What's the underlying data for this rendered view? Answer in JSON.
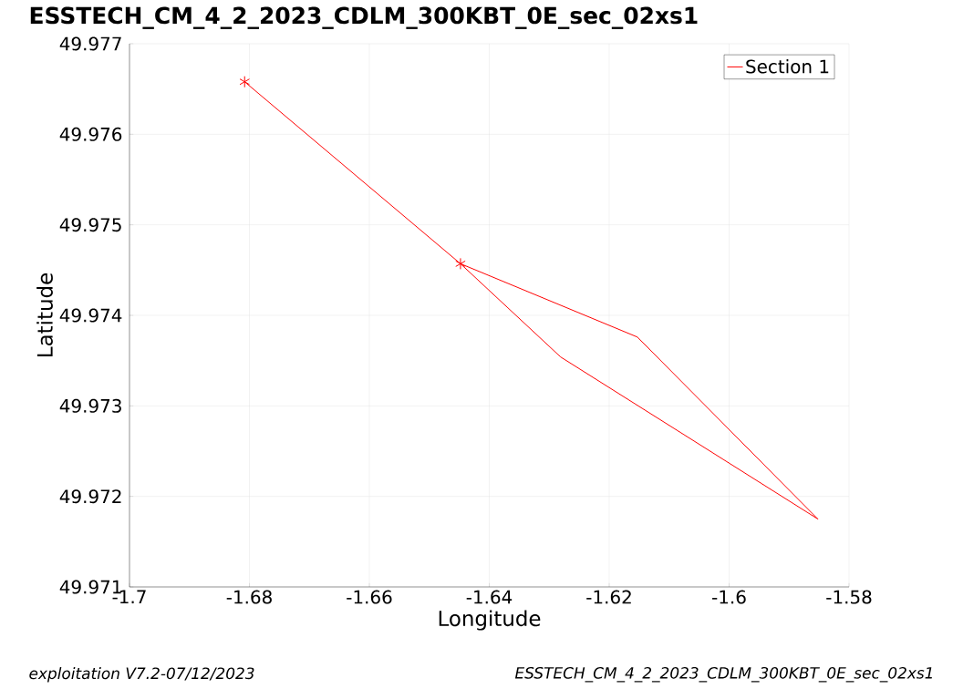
{
  "chart_data": {
    "type": "line",
    "title": "ESSTECH_CM_4_2_2023_CDLM_300KBT_0E_sec_02xs1",
    "xlabel": "Longitude",
    "ylabel": "Latitude",
    "annotations": [
      "exploitation V7.2-07/12/2023",
      "ESSTECH_CM_4_2_2023_CDLM_300KBT_0E_sec_02xs1"
    ],
    "series": [
      {
        "name": "Section 1",
        "color": "#ff0000",
        "marker": "none",
        "x": [
          -1.6808,
          -1.6448,
          -1.6281,
          -1.5852,
          -1.6153,
          -1.6448
        ],
        "values": [
          49.97658,
          49.97457,
          49.97354,
          49.97175,
          49.97376,
          49.97457
        ]
      },
      {
        "type": "scatter",
        "color": "#ff0000",
        "marker": "cross",
        "x": [
          -1.6808,
          -1.6448
        ],
        "values": [
          49.97658,
          49.97457
        ]
      }
    ],
    "xlim": [
      -1.7,
      -1.58
    ],
    "ylim": [
      49.971,
      49.977
    ],
    "xticks": [
      -1.7,
      -1.68,
      -1.66,
      -1.64,
      -1.62,
      -1.6,
      -1.58
    ],
    "yticks": [
      49.971,
      49.972,
      49.973,
      49.974,
      49.975,
      49.976,
      49.977
    ],
    "grid": true,
    "legend": "top right"
  }
}
